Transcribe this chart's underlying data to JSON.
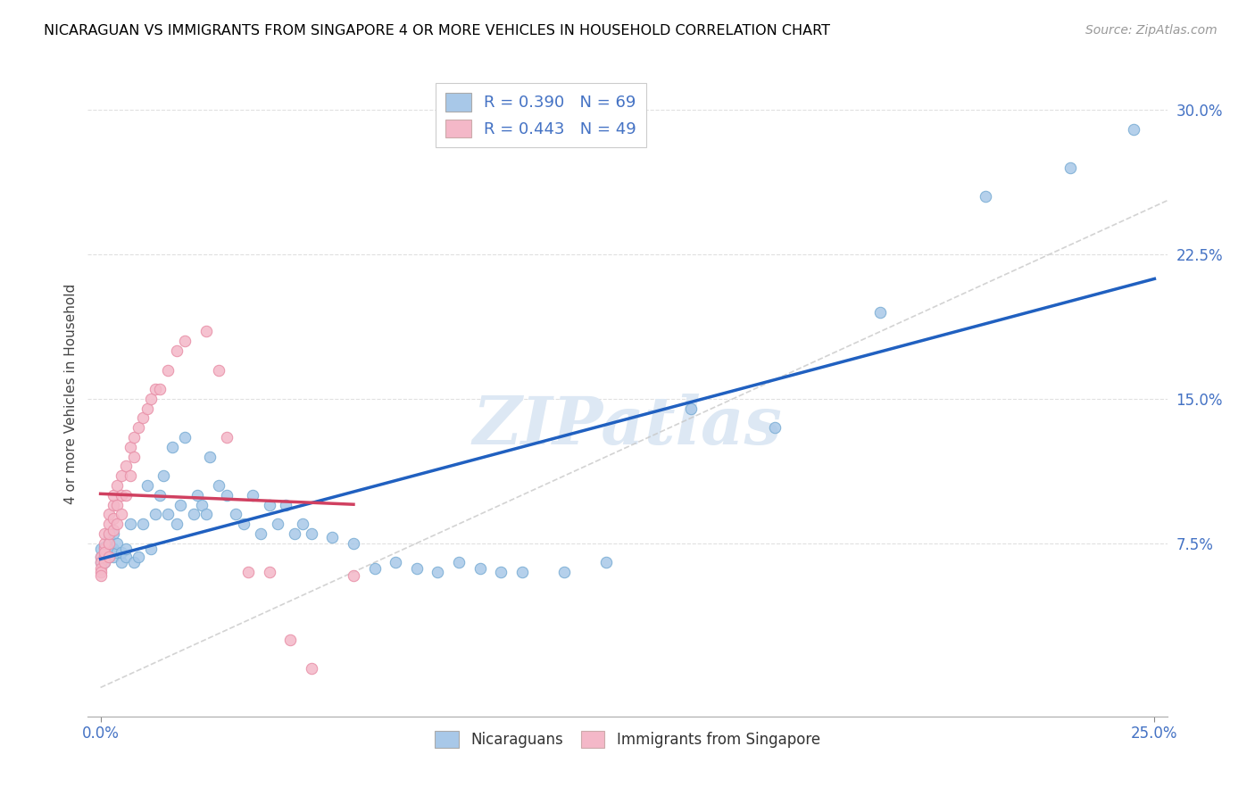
{
  "title": "NICARAGUAN VS IMMIGRANTS FROM SINGAPORE 4 OR MORE VEHICLES IN HOUSEHOLD CORRELATION CHART",
  "source": "Source: ZipAtlas.com",
  "ylabel": "4 or more Vehicles in Household",
  "legend_blue": {
    "R": 0.39,
    "N": 69,
    "label": "Nicaraguans"
  },
  "legend_pink": {
    "R": 0.443,
    "N": 49,
    "label": "Immigrants from Singapore"
  },
  "blue_color": "#a8c8e8",
  "pink_color": "#f4b8c8",
  "blue_edge_color": "#7aadd4",
  "pink_edge_color": "#e890a8",
  "blue_line_color": "#2060c0",
  "pink_line_color": "#d04060",
  "diag_line_color": "#c8c8c8",
  "grid_color": "#dddddd",
  "blue_x": [
    0.0,
    0.0,
    0.0,
    0.001,
    0.001,
    0.001,
    0.001,
    0.002,
    0.002,
    0.002,
    0.002,
    0.003,
    0.003,
    0.003,
    0.004,
    0.004,
    0.005,
    0.005,
    0.006,
    0.006,
    0.007,
    0.008,
    0.009,
    0.01,
    0.011,
    0.012,
    0.013,
    0.014,
    0.015,
    0.016,
    0.017,
    0.018,
    0.019,
    0.02,
    0.022,
    0.023,
    0.024,
    0.025,
    0.026,
    0.028,
    0.03,
    0.032,
    0.034,
    0.036,
    0.038,
    0.04,
    0.042,
    0.044,
    0.046,
    0.048,
    0.05,
    0.055,
    0.06,
    0.065,
    0.07,
    0.075,
    0.08,
    0.085,
    0.09,
    0.095,
    0.1,
    0.11,
    0.12,
    0.14,
    0.16,
    0.185,
    0.21,
    0.23,
    0.245
  ],
  "blue_y": [
    0.068,
    0.065,
    0.072,
    0.07,
    0.068,
    0.065,
    0.073,
    0.068,
    0.07,
    0.075,
    0.078,
    0.068,
    0.072,
    0.08,
    0.07,
    0.075,
    0.065,
    0.07,
    0.068,
    0.072,
    0.085,
    0.065,
    0.068,
    0.085,
    0.105,
    0.072,
    0.09,
    0.1,
    0.11,
    0.09,
    0.125,
    0.085,
    0.095,
    0.13,
    0.09,
    0.1,
    0.095,
    0.09,
    0.12,
    0.105,
    0.1,
    0.09,
    0.085,
    0.1,
    0.08,
    0.095,
    0.085,
    0.095,
    0.08,
    0.085,
    0.08,
    0.078,
    0.075,
    0.062,
    0.065,
    0.062,
    0.06,
    0.065,
    0.062,
    0.06,
    0.06,
    0.06,
    0.065,
    0.145,
    0.135,
    0.195,
    0.255,
    0.27,
    0.29
  ],
  "pink_x": [
    0.0,
    0.0,
    0.0,
    0.0,
    0.0,
    0.001,
    0.001,
    0.001,
    0.001,
    0.001,
    0.001,
    0.002,
    0.002,
    0.002,
    0.002,
    0.002,
    0.003,
    0.003,
    0.003,
    0.003,
    0.004,
    0.004,
    0.004,
    0.005,
    0.005,
    0.005,
    0.006,
    0.006,
    0.007,
    0.007,
    0.008,
    0.008,
    0.009,
    0.01,
    0.011,
    0.012,
    0.013,
    0.014,
    0.016,
    0.018,
    0.02,
    0.025,
    0.028,
    0.03,
    0.035,
    0.04,
    0.045,
    0.05,
    0.06
  ],
  "pink_y": [
    0.068,
    0.065,
    0.062,
    0.06,
    0.058,
    0.068,
    0.072,
    0.075,
    0.08,
    0.07,
    0.065,
    0.068,
    0.075,
    0.08,
    0.085,
    0.09,
    0.082,
    0.088,
    0.095,
    0.1,
    0.085,
    0.095,
    0.105,
    0.09,
    0.1,
    0.11,
    0.1,
    0.115,
    0.11,
    0.125,
    0.12,
    0.13,
    0.135,
    0.14,
    0.145,
    0.15,
    0.155,
    0.155,
    0.165,
    0.175,
    0.18,
    0.185,
    0.165,
    0.13,
    0.06,
    0.06,
    0.025,
    0.01,
    0.058
  ],
  "xlim": [
    0.0,
    0.25
  ],
  "ylim": [
    0.0,
    0.32
  ],
  "ytick_vals": [
    0.075,
    0.15,
    0.225,
    0.3
  ],
  "ytick_labels": [
    "7.5%",
    "15.0%",
    "22.5%",
    "30.0%"
  ],
  "xtick_vals": [
    0.0,
    0.25
  ],
  "xtick_labels": [
    "0.0%",
    "25.0%"
  ]
}
